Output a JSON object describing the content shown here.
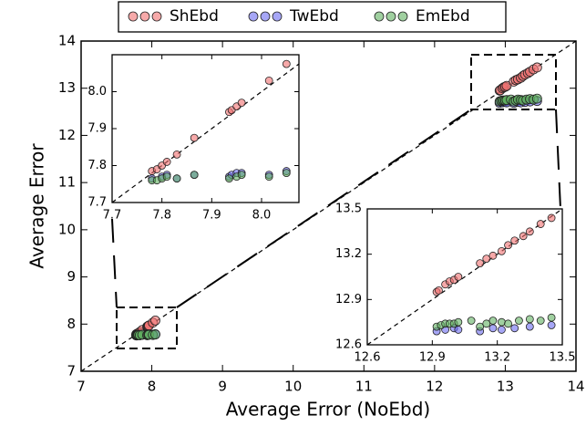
{
  "chart_data": [
    {
      "type": "scatter",
      "xlabel": "Average Error (NoEbd)",
      "ylabel": "Average Error",
      "xlim": [
        7,
        14
      ],
      "ylim": [
        7,
        14
      ],
      "xticks": [
        7,
        8,
        9,
        10,
        11,
        12,
        13,
        14
      ],
      "yticks": [
        7,
        8,
        9,
        10,
        11,
        12,
        13,
        14
      ],
      "diagonal": true,
      "series": [
        {
          "name": "ShEbd",
          "color": "#f07070",
          "x": [
            7.78,
            7.79,
            7.8,
            7.81,
            7.83,
            7.865,
            7.935,
            7.94,
            7.95,
            7.96,
            8.015,
            8.05,
            12.92,
            12.93,
            12.96,
            12.98,
            13.0,
            13.02,
            13.12,
            13.15,
            13.18,
            13.22,
            13.25,
            13.28,
            13.32,
            13.35,
            13.4,
            13.45
          ],
          "values": [
            7.785,
            7.79,
            7.8,
            7.81,
            7.83,
            7.875,
            7.945,
            7.95,
            7.96,
            7.97,
            8.03,
            8.075,
            12.95,
            12.96,
            13.0,
            13.02,
            13.03,
            13.05,
            13.14,
            13.17,
            13.19,
            13.22,
            13.26,
            13.29,
            13.32,
            13.35,
            13.4,
            13.44
          ]
        },
        {
          "name": "TwEbd",
          "color": "#6a6af0",
          "x": [
            7.78,
            7.8,
            7.81,
            7.83,
            7.865,
            7.935,
            7.94,
            7.95,
            7.96,
            8.015,
            8.05,
            12.92,
            12.96,
            13.0,
            13.02,
            13.12,
            13.18,
            13.22,
            13.28,
            13.35,
            13.45
          ],
          "values": [
            7.765,
            7.77,
            7.775,
            7.765,
            7.775,
            7.77,
            7.775,
            7.78,
            7.78,
            7.775,
            7.785,
            12.69,
            12.7,
            12.71,
            12.7,
            12.69,
            12.71,
            12.7,
            12.71,
            12.72,
            12.73
          ]
        },
        {
          "name": "EmEbd",
          "color": "#60b060",
          "x": [
            7.78,
            7.79,
            7.8,
            7.81,
            7.83,
            7.865,
            7.935,
            7.95,
            7.96,
            8.015,
            8.05,
            12.92,
            12.94,
            12.96,
            12.98,
            13.0,
            13.02,
            13.08,
            13.12,
            13.15,
            13.18,
            13.22,
            13.25,
            13.3,
            13.35,
            13.4,
            13.45
          ],
          "values": [
            7.76,
            7.76,
            7.765,
            7.77,
            7.765,
            7.775,
            7.765,
            7.77,
            7.775,
            7.77,
            7.78,
            12.72,
            12.73,
            12.74,
            12.74,
            12.74,
            12.75,
            12.76,
            12.72,
            12.74,
            12.76,
            12.75,
            12.74,
            12.76,
            12.77,
            12.76,
            12.78
          ]
        }
      ]
    },
    {
      "type": "inset",
      "xlim": [
        7.7,
        8.075
      ],
      "ylim": [
        7.7,
        8.1
      ],
      "xticks": [
        7.7,
        7.8,
        7.9,
        {
          "value": 8,
          "label": "8.0"
        }
      ],
      "yticks": [
        7.7,
        7.8,
        7.9,
        {
          "value": 8,
          "label": "8.0"
        }
      ],
      "diagonal": true
    },
    {
      "type": "inset",
      "xlim": [
        12.6,
        13.5
      ],
      "ylim": [
        12.6,
        13.5
      ],
      "xticks": [
        12.6,
        12.9,
        13.2,
        13.5
      ],
      "yticks": [
        12.6,
        12.9,
        13.2,
        13.5
      ],
      "diagonal": true
    }
  ]
}
